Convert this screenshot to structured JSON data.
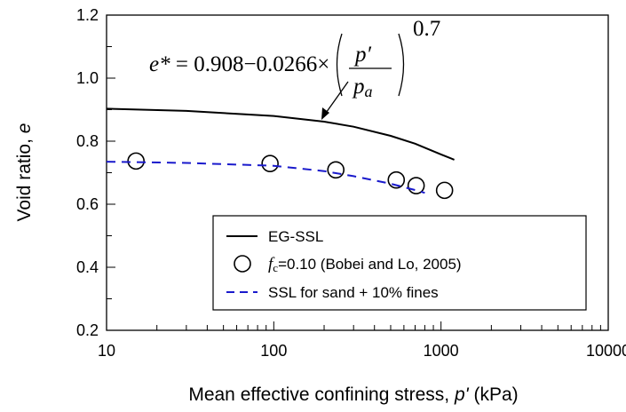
{
  "chart_data": {
    "type": "scatter",
    "x_scale": "log",
    "xlim": [
      10,
      10000
    ],
    "ylim": [
      0.2,
      1.2
    ],
    "x_ticks": [
      10,
      100,
      1000,
      10000
    ],
    "x_tick_labels": [
      "10",
      "100",
      "1000",
      "10000"
    ],
    "y_ticks": [
      0.2,
      0.4,
      0.6,
      0.8,
      1.0,
      1.2
    ],
    "y_tick_labels": [
      "0.2",
      "0.4",
      "0.6",
      "0.8",
      "1.0",
      "1.2"
    ],
    "xlabel": {
      "main": "Mean effective confining stress, ",
      "symbol": "p'",
      "unit": " (kPa)"
    },
    "ylabel": {
      "main": "Void ratio, ",
      "symbol": "e"
    },
    "grid": false,
    "legend_position": "bottom-right",
    "series": [
      {
        "name": "EG-SSL",
        "kind": "line",
        "style": "solid",
        "color": "#000000",
        "x": [
          10,
          30,
          100,
          200,
          300,
          500,
          700,
          1000,
          1200
        ],
        "y": [
          0.903,
          0.896,
          0.88,
          0.862,
          0.846,
          0.817,
          0.792,
          0.758,
          0.741
        ]
      },
      {
        "name": "fc=0.10 (Bobei and Lo, 2005)",
        "kind": "scatter",
        "marker": "open-circle",
        "color": "#000000",
        "x": [
          15,
          95,
          235,
          540,
          710,
          1050
        ],
        "y": [
          0.737,
          0.729,
          0.709,
          0.677,
          0.659,
          0.644
        ]
      },
      {
        "name": "SSL for sand + 10% fines",
        "kind": "line",
        "style": "dashed",
        "color": "#1a1acc",
        "x": [
          10,
          30,
          100,
          200,
          300,
          500,
          700,
          800
        ],
        "y": [
          0.735,
          0.731,
          0.722,
          0.705,
          0.689,
          0.665,
          0.645,
          0.636
        ]
      }
    ],
    "legend": [
      {
        "series": 0,
        "label": "EG-SSL"
      },
      {
        "series": 1,
        "label_prefix": "f",
        "label_sub": "c",
        "label_rest": "=0.10 (Bobei and Lo, 2005)"
      },
      {
        "series": 2,
        "label": "SSL for sand + 10% fines"
      }
    ],
    "annotation": {
      "equation": {
        "lhs": "e*",
        "eq": " = 0.908−0.0266×",
        "numerator": "p′",
        "denominator": "p",
        "denominator_sub": "a",
        "exponent": "0.7"
      },
      "arrow_to": {
        "x": 240,
        "y": 0.86
      }
    }
  }
}
